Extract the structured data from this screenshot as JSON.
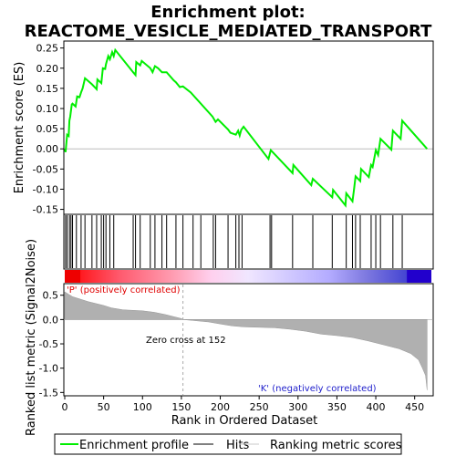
{
  "chart_data": [
    {
      "type": "line",
      "title_line1": "Enrichment plot:",
      "title_line2": "REACTOME_VESICLE_MEDIATED_TRANSPORT",
      "ylabel": "Enrichment score (ES)",
      "ylim": [
        -0.15,
        0.25
      ],
      "yticks": [
        "-0.15",
        "-0.10",
        "-0.05",
        "0.00",
        "0.05",
        "0.10",
        "0.15",
        "0.20",
        "0.25"
      ],
      "xlim": [
        0,
        475
      ],
      "series": [
        {
          "name": "Enrichment profile",
          "color": "#00ee00",
          "points": [
            [
              0,
              0
            ],
            [
              1,
              -0.008
            ],
            [
              3,
              0.035
            ],
            [
              5,
              0.032
            ],
            [
              6,
              0.07
            ],
            [
              7,
              0.08
            ],
            [
              9,
              0.11
            ],
            [
              10,
              0.112
            ],
            [
              14,
              0.105
            ],
            [
              16,
              0.13
            ],
            [
              19,
              0.128
            ],
            [
              21,
              0.14
            ],
            [
              23,
              0.15
            ],
            [
              26,
              0.175
            ],
            [
              35,
              0.16
            ],
            [
              41,
              0.148
            ],
            [
              42,
              0.172
            ],
            [
              47,
              0.163
            ],
            [
              49,
              0.2
            ],
            [
              52,
              0.198
            ],
            [
              53,
              0.21
            ],
            [
              56,
              0.23
            ],
            [
              58,
              0.222
            ],
            [
              61,
              0.24
            ],
            [
              63,
              0.23
            ],
            [
              65,
              0.245
            ],
            [
              88,
              0.19
            ],
            [
              91,
              0.183
            ],
            [
              92,
              0.215
            ],
            [
              97,
              0.207
            ],
            [
              99,
              0.218
            ],
            [
              110,
              0.2
            ],
            [
              113,
              0.19
            ],
            [
              116,
              0.205
            ],
            [
              120,
              0.2
            ],
            [
              125,
              0.19
            ],
            [
              131,
              0.19
            ],
            [
              140,
              0.17
            ],
            [
              143,
              0.165
            ],
            [
              148,
              0.153
            ],
            [
              152,
              0.155
            ],
            [
              162,
              0.14
            ],
            [
              190,
              0.08
            ],
            [
              194,
              0.067
            ],
            [
              197,
              0.073
            ],
            [
              210,
              0.048
            ],
            [
              213,
              0.04
            ],
            [
              220,
              0.035
            ],
            [
              223,
              0.045
            ],
            [
              225,
              0.033
            ],
            [
              227,
              0.047
            ],
            [
              230,
              0.055
            ],
            [
              262,
              -0.025
            ],
            [
              265,
              -0.003
            ],
            [
              293,
              -0.06
            ],
            [
              294,
              -0.04
            ],
            [
              317,
              -0.09
            ],
            [
              319,
              -0.074
            ],
            [
              344,
              -0.12
            ],
            [
              345,
              -0.102
            ],
            [
              361,
              -0.14
            ],
            [
              362,
              -0.11
            ],
            [
              370,
              -0.13
            ],
            [
              372,
              -0.1
            ],
            [
              374,
              -0.068
            ],
            [
              380,
              -0.08
            ],
            [
              381,
              -0.05
            ],
            [
              391,
              -0.07
            ],
            [
              394,
              -0.04
            ],
            [
              396,
              -0.045
            ],
            [
              400,
              -0.003
            ],
            [
              403,
              -0.015
            ],
            [
              406,
              0.025
            ],
            [
              420,
              -0.002
            ],
            [
              422,
              0.045
            ],
            [
              432,
              0.025
            ],
            [
              434,
              0.07
            ],
            [
              466,
              0.0
            ]
          ]
        }
      ],
      "hits_label": "Hits",
      "hits": [
        1,
        3,
        6,
        8,
        10,
        15,
        21,
        26,
        35,
        41,
        47,
        50,
        53,
        58,
        63,
        88,
        91,
        97,
        110,
        116,
        125,
        131,
        143,
        152,
        165,
        175,
        191,
        194,
        210,
        220,
        224,
        228,
        264,
        266,
        293,
        319,
        344,
        362,
        370,
        374,
        380,
        394,
        400,
        406,
        422,
        434
      ]
    },
    {
      "type": "area",
      "ylabel": "Ranked list metric (Signal2Noise)",
      "xlabel": "Rank in Ordered Dataset",
      "ylim": [
        -1.5,
        0.5
      ],
      "yticks": [
        "-1.5",
        "-1.0",
        "-0.5",
        "0.0",
        "0.5"
      ],
      "xticks": [
        "0",
        "50",
        "100",
        "150",
        "200",
        "250",
        "300",
        "350",
        "400",
        "450"
      ],
      "xtick_values": [
        0,
        50,
        100,
        150,
        200,
        250,
        300,
        350,
        400,
        450
      ],
      "series": [
        {
          "name": "Ranking metric scores",
          "color": "#b0b0b0",
          "points": [
            [
              0,
              0.57
            ],
            [
              5,
              0.52
            ],
            [
              10,
              0.47
            ],
            [
              20,
              0.42
            ],
            [
              30,
              0.37
            ],
            [
              40,
              0.33
            ],
            [
              50,
              0.29
            ],
            [
              60,
              0.24
            ],
            [
              75,
              0.2
            ],
            [
              100,
              0.18
            ],
            [
              115,
              0.15
            ],
            [
              130,
              0.1
            ],
            [
              140,
              0.06
            ],
            [
              150,
              0.02
            ],
            [
              152,
              0.0
            ],
            [
              165,
              -0.02
            ],
            [
              185,
              -0.05
            ],
            [
              200,
              -0.09
            ],
            [
              215,
              -0.13
            ],
            [
              230,
              -0.15
            ],
            [
              250,
              -0.16
            ],
            [
              270,
              -0.17
            ],
            [
              290,
              -0.2
            ],
            [
              310,
              -0.24
            ],
            [
              330,
              -0.3
            ],
            [
              350,
              -0.33
            ],
            [
              370,
              -0.37
            ],
            [
              390,
              -0.44
            ],
            [
              410,
              -0.52
            ],
            [
              430,
              -0.6
            ],
            [
              445,
              -0.7
            ],
            [
              455,
              -0.83
            ],
            [
              460,
              -1.0
            ],
            [
              464,
              -1.15
            ],
            [
              466,
              -1.45
            ]
          ]
        }
      ],
      "annotations": {
        "positive": "'P' (positively correlated)",
        "negative": "'K' (negatively correlated)",
        "zero_cross": "Zero cross at 152"
      },
      "zero_cross": 152
    }
  ],
  "legend": {
    "items": [
      {
        "label": "Enrichment profile",
        "color": "#00ee00",
        "kind": "line"
      },
      {
        "label": "Hits",
        "color": "#000000",
        "kind": "line"
      },
      {
        "label": "Ranking metric scores",
        "color": "#c8c8c8",
        "kind": "line"
      }
    ]
  }
}
